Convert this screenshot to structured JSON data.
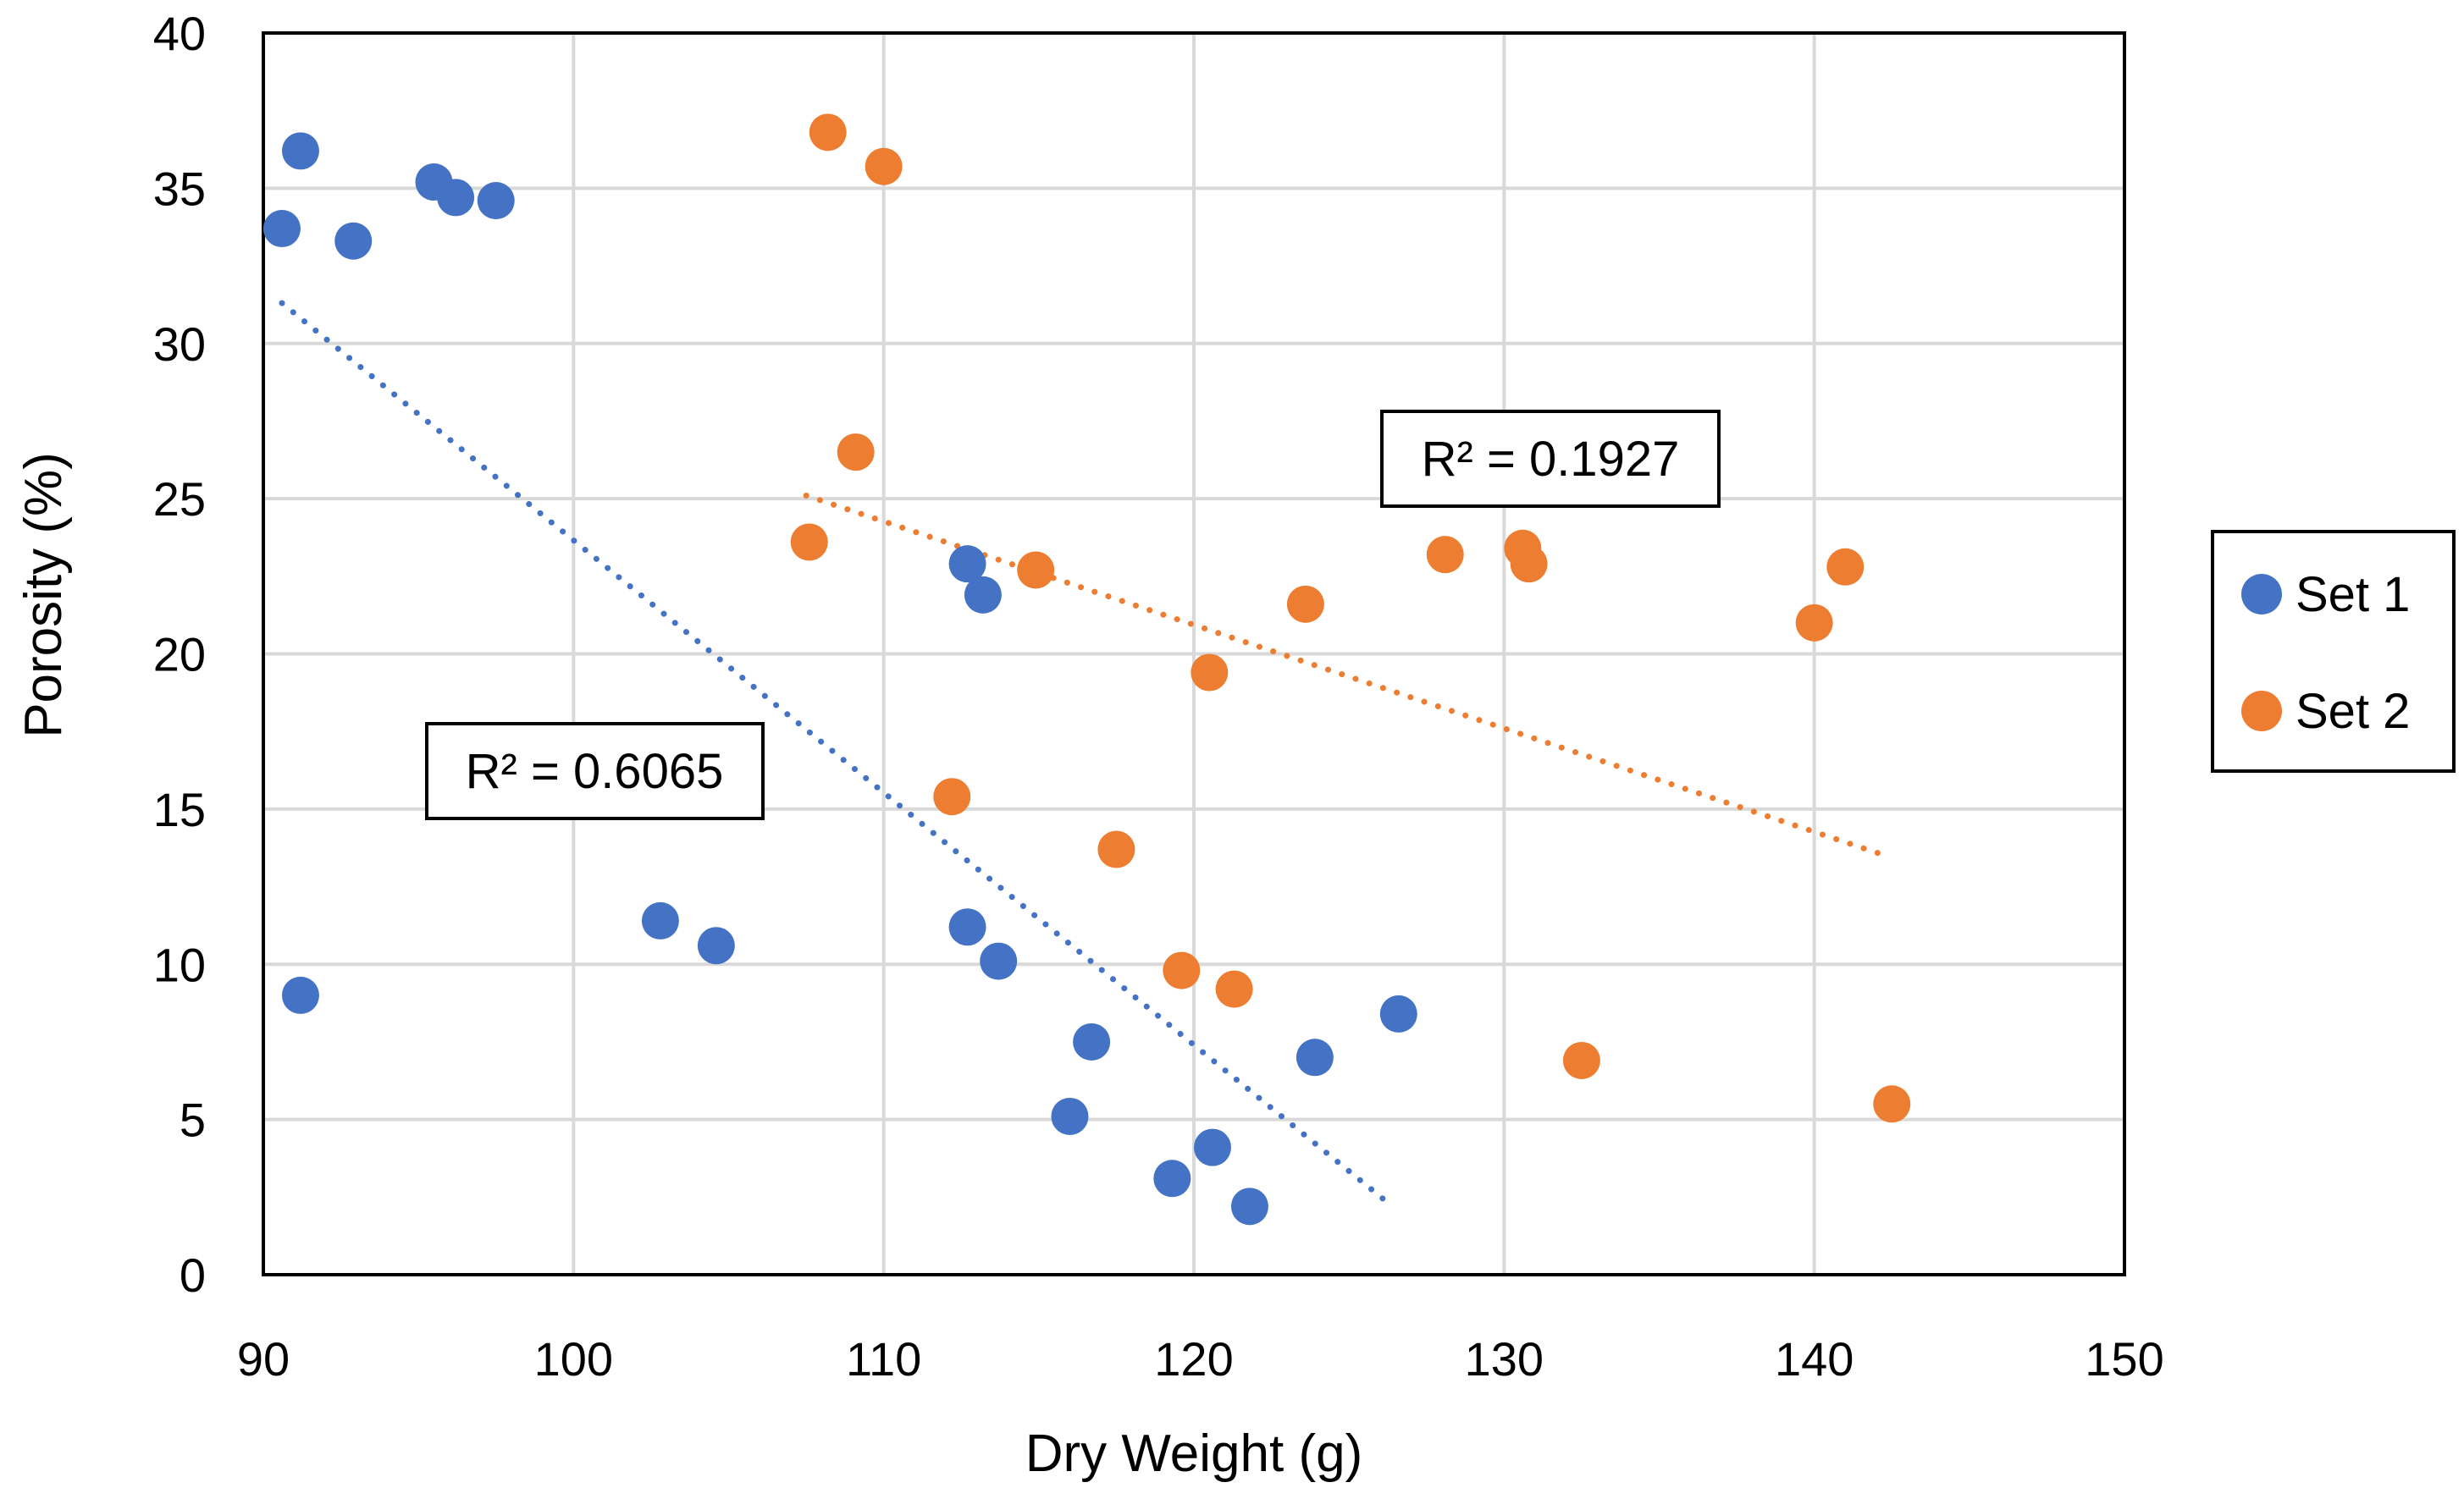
{
  "chart_data": {
    "type": "scatter",
    "title": "",
    "xlabel": "Dry Weight (g)",
    "ylabel": "Porosity  (%)",
    "xlim": [
      90,
      150
    ],
    "ylim": [
      0,
      40
    ],
    "x_ticks": [
      90,
      100,
      110,
      120,
      130,
      140,
      150
    ],
    "y_ticks": [
      0,
      5,
      10,
      15,
      20,
      25,
      30,
      35,
      40
    ],
    "grid": true,
    "legend_position": "right",
    "series": [
      {
        "name": "Set 1",
        "color": "#4472C4",
        "points": [
          [
            90.6,
            33.7
          ],
          [
            91.2,
            36.2
          ],
          [
            92.9,
            33.3
          ],
          [
            95.5,
            35.2
          ],
          [
            96.2,
            34.7
          ],
          [
            97.5,
            34.6
          ],
          [
            91.2,
            9.0
          ],
          [
            102.8,
            11.4
          ],
          [
            104.6,
            10.6
          ],
          [
            112.7,
            22.9
          ],
          [
            113.2,
            21.9
          ],
          [
            112.7,
            11.2
          ],
          [
            113.7,
            10.1
          ],
          [
            116.0,
            5.1
          ],
          [
            116.7,
            7.5
          ],
          [
            119.3,
            3.1
          ],
          [
            120.6,
            4.1
          ],
          [
            121.8,
            2.2
          ],
          [
            123.9,
            7.0
          ],
          [
            126.6,
            8.4
          ]
        ],
        "trendline": {
          "type": "linear",
          "style": "dotted",
          "x_range": [
            90.6,
            126.4
          ],
          "y_at_range": [
            31.3,
            2.2
          ],
          "r_squared_label": "R² = 0.6065"
        }
      },
      {
        "name": "Set 2",
        "color": "#ED7D31",
        "points": [
          [
            108.2,
            36.8
          ],
          [
            110.0,
            35.7
          ],
          [
            109.1,
            26.5
          ],
          [
            107.6,
            23.6
          ],
          [
            114.9,
            22.7
          ],
          [
            112.2,
            15.4
          ],
          [
            117.5,
            13.7
          ],
          [
            120.5,
            19.4
          ],
          [
            119.6,
            9.8
          ],
          [
            121.3,
            9.2
          ],
          [
            123.6,
            21.6
          ],
          [
            128.1,
            23.2
          ],
          [
            130.6,
            23.4
          ],
          [
            130.8,
            22.9
          ],
          [
            132.5,
            6.9
          ],
          [
            140.0,
            21.0
          ],
          [
            141.0,
            22.8
          ],
          [
            142.5,
            5.5
          ]
        ],
        "trendline": {
          "type": "linear",
          "style": "dotted",
          "x_range": [
            107.5,
            142.3
          ],
          "y_at_range": [
            25.1,
            13.5
          ],
          "r_squared_label": "R² = 0.1927"
        }
      }
    ]
  }
}
